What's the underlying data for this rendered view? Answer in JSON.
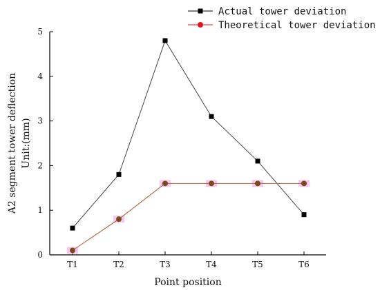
{
  "chart_data": {
    "type": "line",
    "title": "",
    "xlabel": "Point position",
    "ylabel_lines": [
      "A2 segment tower deflection",
      "Unit:(mm)"
    ],
    "categories": [
      "T1",
      "T2",
      "T3",
      "T4",
      "T5",
      "T6"
    ],
    "ylim": [
      0,
      5
    ],
    "yticks": [
      0,
      1,
      2,
      3,
      4,
      5
    ],
    "grid": false,
    "legend_position": "top-right",
    "series": [
      {
        "name": "Actual tower deviation",
        "marker": "square",
        "color": "#000000",
        "line_color": "#444444",
        "values": [
          0.6,
          1.8,
          4.8,
          3.1,
          2.1,
          0.9
        ]
      },
      {
        "name": "Theoretical tower deviation",
        "marker": "circle",
        "color": "#7a4a1a",
        "legend_color": "#e8141b",
        "line_color": "#b0552a",
        "highlight_color": "#f7bcee",
        "values": [
          0.1,
          0.8,
          1.6,
          1.6,
          1.6,
          1.6
        ]
      }
    ]
  }
}
